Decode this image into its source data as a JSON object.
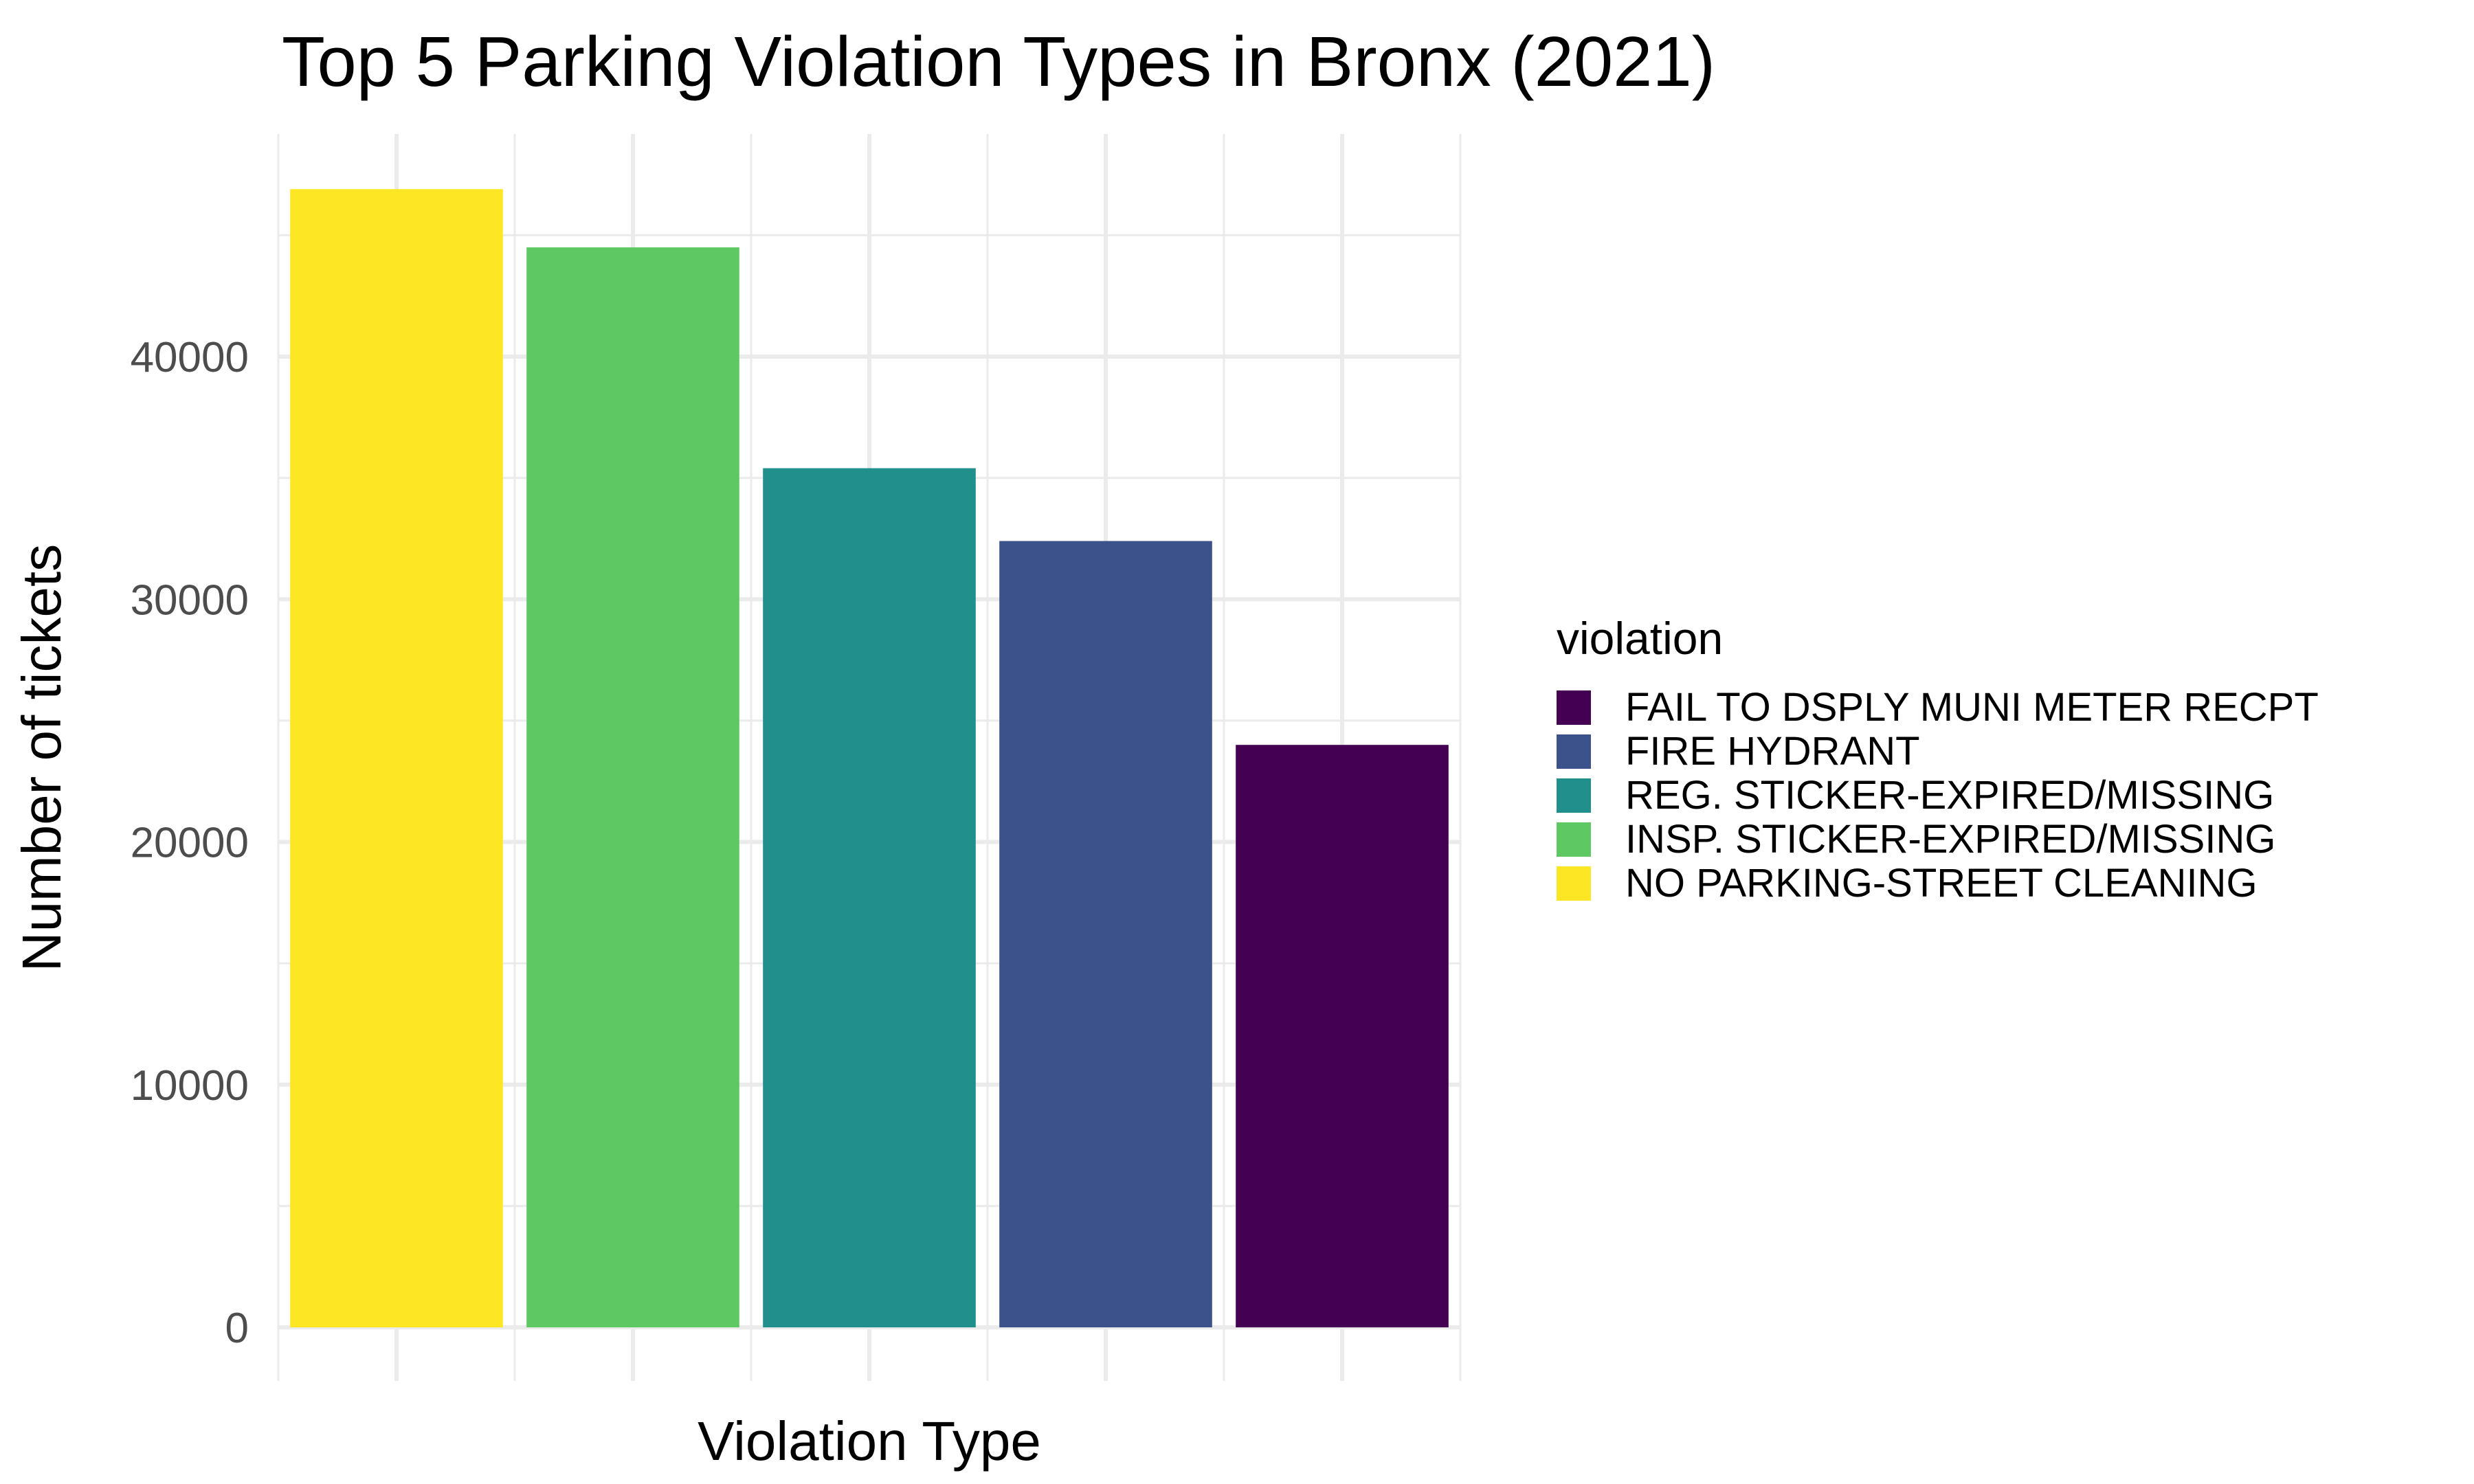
{
  "chart_data": {
    "type": "bar",
    "title": "Top 5 Parking Violation Types in Bronx (2021)",
    "xlabel": "Violation Type",
    "ylabel": "Number of tickets",
    "ylim": [
      0,
      52000
    ],
    "yticks": [
      0,
      10000,
      20000,
      30000,
      40000
    ],
    "y_tick_labels": [
      "0",
      "10000",
      "20000",
      "30000",
      "40000"
    ],
    "grid": true,
    "x_tick_labels_shown": false,
    "categories": [
      "NO PARKING-STREET CLEANING",
      "INSP. STICKER-EXPIRED/MISSING",
      "REG. STICKER-EXPIRED/MISSING",
      "FIRE HYDRANT",
      "FAIL TO DSPLY MUNI METER RECPT"
    ],
    "values": [
      46900,
      44500,
      35400,
      32400,
      24000
    ],
    "colors": [
      "#FDE725",
      "#5EC962",
      "#21908C",
      "#3B528B",
      "#440154"
    ],
    "legend": {
      "title": "violation",
      "placement": "right",
      "entries": [
        {
          "label": "FAIL TO DSPLY MUNI METER RECPT",
          "color": "#440154"
        },
        {
          "label": "FIRE HYDRANT",
          "color": "#3B528B"
        },
        {
          "label": "REG. STICKER-EXPIRED/MISSING",
          "color": "#21908C"
        },
        {
          "label": "INSP. STICKER-EXPIRED/MISSING",
          "color": "#5EC962"
        },
        {
          "label": "NO PARKING-STREET CLEANING",
          "color": "#FDE725"
        }
      ]
    }
  }
}
